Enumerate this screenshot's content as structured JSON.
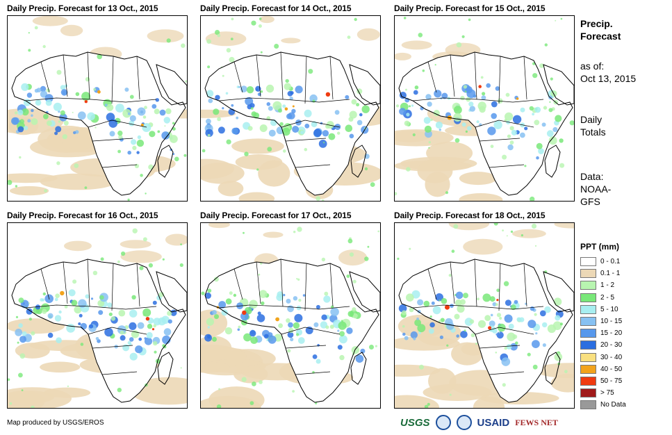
{
  "panels": [
    {
      "title": "Daily Precip. Forecast for 13 Oct., 2015"
    },
    {
      "title": "Daily Precip. Forecast for 14 Oct., 2015"
    },
    {
      "title": "Daily Precip. Forecast for 15 Oct., 2015"
    },
    {
      "title": "Daily Precip. Forecast for 16 Oct., 2015"
    },
    {
      "title": "Daily Precip. Forecast for 17 Oct., 2015"
    },
    {
      "title": "Daily Precip. Forecast for 18 Oct., 2015"
    }
  ],
  "side": {
    "title_line1": "Precip.",
    "title_line2": "Forecast",
    "asof_line1": "as of:",
    "asof_line2": "Oct 13, 2015",
    "totals_line1": "Daily",
    "totals_line2": "Totals",
    "data_line1": "Data:",
    "data_line2": "NOAA-",
    "data_line3": "GFS"
  },
  "legend": {
    "title": "PPT (mm)",
    "items": [
      {
        "label": "0 - 0.1",
        "color": "#ffffff"
      },
      {
        "label": "0.1 - 1",
        "color": "#ecd8b6"
      },
      {
        "label": "1 - 2",
        "color": "#b8f5b0"
      },
      {
        "label": "2 - 5",
        "color": "#79e879"
      },
      {
        "label": "5 - 10",
        "color": "#a8eef0"
      },
      {
        "label": "10 - 15",
        "color": "#87c1f2"
      },
      {
        "label": "15 - 20",
        "color": "#5798ec"
      },
      {
        "label": "20 - 30",
        "color": "#2b6ee0"
      },
      {
        "label": "30 - 40",
        "color": "#f9e080"
      },
      {
        "label": "40 - 50",
        "color": "#f2a31c"
      },
      {
        "label": "50 - 75",
        "color": "#f03b10"
      },
      {
        "label": "> 75",
        "color": "#a01a1a"
      },
      {
        "label": "No Data",
        "color": "#999999"
      }
    ]
  },
  "credit": "Map produced by USGS/EROS",
  "logos": {
    "usgs": "USGS",
    "usaid": "USAID",
    "fews": "FEWS NET"
  }
}
